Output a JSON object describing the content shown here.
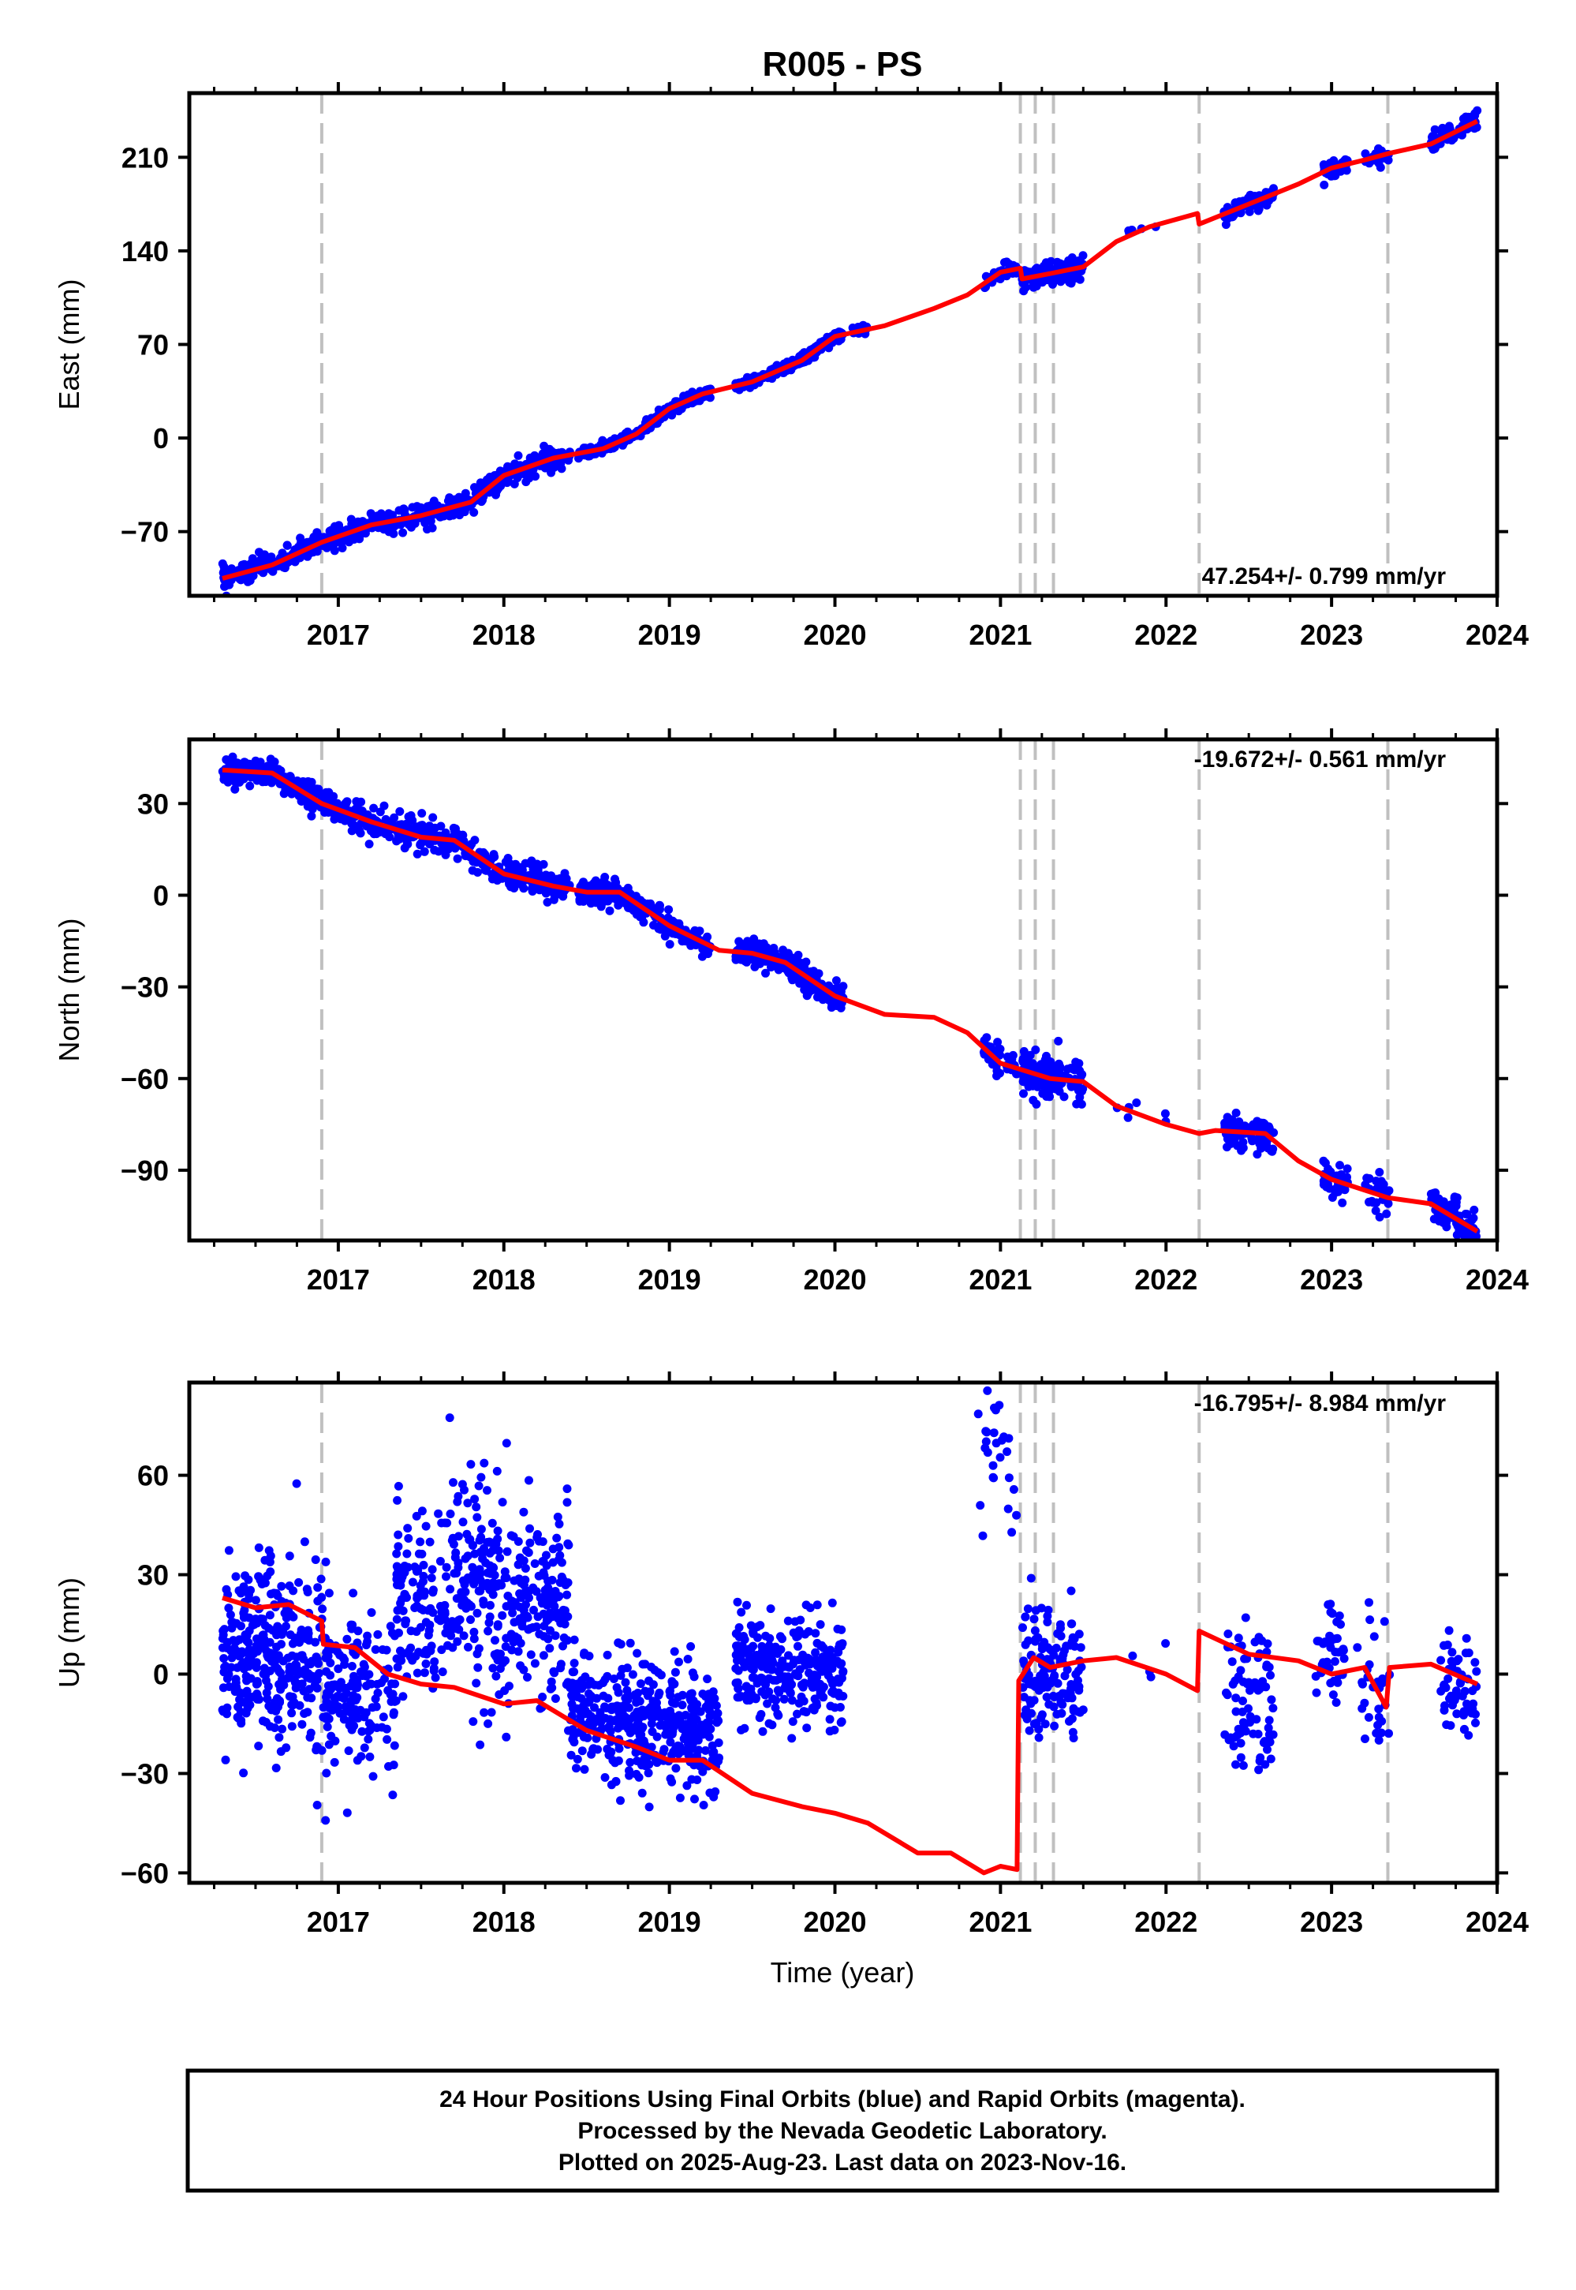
{
  "title": "R005 - PS",
  "xlabel": "Time (year)",
  "footer": {
    "lines": [
      "24 Hour Positions Using Final Orbits (blue) and Rapid Orbits (magenta).",
      "Processed by the Nevada Geodetic Laboratory.",
      "Plotted on 2025-Aug-23. Last data on 2023-Nov-16."
    ]
  },
  "colors": {
    "final_orbits": "#0000ff",
    "model_fit": "#ff0000",
    "event_lines": "#c0c0c0",
    "frame": "#000000"
  },
  "chart_data": [
    {
      "type": "scatter",
      "name": "east",
      "ylabel": "East (mm)",
      "rate_label": "47.254+/- 0.799 mm/yr",
      "xlim": [
        2016.1,
        2024.0
      ],
      "ylim": [
        -118,
        258
      ],
      "xticks": [
        2017,
        2018,
        2019,
        2020,
        2021,
        2022,
        2023,
        2024
      ],
      "yticks": [
        -70,
        0,
        70,
        140,
        210
      ],
      "ytick_labels": [
        "−70",
        "0",
        "70",
        "140",
        "210"
      ],
      "grid": false,
      "events": [
        2016.9,
        2021.12,
        2021.21,
        2021.32,
        2022.2,
        2023.34
      ],
      "data_segments": [
        {
          "start": 2016.3,
          "end": 2018.4,
          "density": 600,
          "noise": 4
        },
        {
          "start": 2018.45,
          "end": 2019.25,
          "density": 300,
          "noise": 2
        },
        {
          "start": 2019.4,
          "end": 2020.05,
          "density": 260,
          "noise": 2
        },
        {
          "start": 2020.1,
          "end": 2020.2,
          "density": 20,
          "noise": 2
        },
        {
          "start": 2020.9,
          "end": 2021.1,
          "density": 40,
          "noise": 3
        },
        {
          "start": 2021.13,
          "end": 2021.5,
          "density": 140,
          "noise": 4
        },
        {
          "start": 2021.7,
          "end": 2022.0,
          "density": 6,
          "noise": 2
        },
        {
          "start": 2022.35,
          "end": 2022.65,
          "density": 80,
          "noise": 3
        },
        {
          "start": 2022.95,
          "end": 2023.1,
          "density": 40,
          "noise": 3
        },
        {
          "start": 2023.2,
          "end": 2023.35,
          "density": 25,
          "noise": 3
        },
        {
          "start": 2023.6,
          "end": 2023.88,
          "density": 70,
          "noise": 4
        }
      ],
      "fit": [
        [
          2016.3,
          -105
        ],
        [
          2016.6,
          -95
        ],
        [
          2016.9,
          -78
        ],
        [
          2017.2,
          -65
        ],
        [
          2017.5,
          -58
        ],
        [
          2017.8,
          -48
        ],
        [
          2018.0,
          -28
        ],
        [
          2018.3,
          -15
        ],
        [
          2018.6,
          -8
        ],
        [
          2018.8,
          3
        ],
        [
          2019.0,
          22
        ],
        [
          2019.2,
          33
        ],
        [
          2019.5,
          42
        ],
        [
          2019.8,
          58
        ],
        [
          2020.0,
          76
        ],
        [
          2020.3,
          84
        ],
        [
          2020.6,
          97
        ],
        [
          2020.8,
          107
        ],
        [
          2021.0,
          124
        ],
        [
          2021.12,
          127
        ],
        [
          2021.13,
          119
        ],
        [
          2021.3,
          123
        ],
        [
          2021.5,
          128
        ],
        [
          2021.7,
          147
        ],
        [
          2021.9,
          158
        ],
        [
          2022.19,
          168
        ],
        [
          2022.2,
          160
        ],
        [
          2022.5,
          175
        ],
        [
          2022.8,
          190
        ],
        [
          2023.0,
          202
        ],
        [
          2023.2,
          208
        ],
        [
          2023.35,
          213
        ],
        [
          2023.6,
          220
        ],
        [
          2023.88,
          237
        ]
      ]
    },
    {
      "type": "scatter",
      "name": "north",
      "ylabel": "North (mm)",
      "rate_label": "-19.672+/- 0.561 mm/yr",
      "xlim": [
        2016.1,
        2024.0
      ],
      "ylim": [
        -113,
        51
      ],
      "xticks": [
        2017,
        2018,
        2019,
        2020,
        2021,
        2022,
        2023,
        2024
      ],
      "yticks": [
        -90,
        -60,
        -30,
        0,
        30
      ],
      "ytick_labels": [
        "−90",
        "−60",
        "−30",
        "0",
        "30"
      ],
      "grid": false,
      "events": [
        2016.9,
        2021.12,
        2021.21,
        2021.32,
        2022.2,
        2023.34
      ],
      "data_segments": [
        {
          "start": 2016.3,
          "end": 2018.4,
          "density": 600,
          "noise": 2.5
        },
        {
          "start": 2018.45,
          "end": 2019.25,
          "density": 300,
          "noise": 1.8
        },
        {
          "start": 2019.4,
          "end": 2020.05,
          "density": 260,
          "noise": 2
        },
        {
          "start": 2020.9,
          "end": 2021.1,
          "density": 40,
          "noise": 3
        },
        {
          "start": 2021.13,
          "end": 2021.5,
          "density": 140,
          "noise": 3.5
        },
        {
          "start": 2021.7,
          "end": 2022.0,
          "density": 6,
          "noise": 2
        },
        {
          "start": 2022.35,
          "end": 2022.65,
          "density": 80,
          "noise": 3
        },
        {
          "start": 2022.95,
          "end": 2023.1,
          "density": 40,
          "noise": 3
        },
        {
          "start": 2023.2,
          "end": 2023.35,
          "density": 25,
          "noise": 3
        },
        {
          "start": 2023.6,
          "end": 2023.88,
          "density": 70,
          "noise": 3
        }
      ],
      "fit": [
        [
          2016.3,
          41
        ],
        [
          2016.6,
          40
        ],
        [
          2016.9,
          30
        ],
        [
          2017.2,
          24
        ],
        [
          2017.5,
          19
        ],
        [
          2017.7,
          18
        ],
        [
          2018.0,
          7
        ],
        [
          2018.3,
          3
        ],
        [
          2018.5,
          1
        ],
        [
          2018.7,
          1
        ],
        [
          2019.0,
          -10
        ],
        [
          2019.3,
          -18
        ],
        [
          2019.5,
          -19
        ],
        [
          2019.7,
          -22
        ],
        [
          2020.0,
          -33
        ],
        [
          2020.3,
          -39
        ],
        [
          2020.6,
          -40
        ],
        [
          2020.8,
          -45
        ],
        [
          2021.0,
          -55
        ],
        [
          2021.3,
          -60
        ],
        [
          2021.5,
          -61
        ],
        [
          2021.7,
          -69
        ],
        [
          2022.0,
          -75
        ],
        [
          2022.2,
          -78
        ],
        [
          2022.3,
          -77
        ],
        [
          2022.6,
          -78
        ],
        [
          2022.8,
          -87
        ],
        [
          2023.0,
          -93
        ],
        [
          2023.34,
          -99
        ],
        [
          2023.6,
          -101
        ],
        [
          2023.88,
          -110
        ]
      ]
    },
    {
      "type": "scatter",
      "name": "up",
      "ylabel": "Up (mm)",
      "rate_label": "-16.795+/- 8.984 mm/yr",
      "xlim": [
        2016.1,
        2024.0
      ],
      "ylim": [
        -63,
        88
      ],
      "xticks": [
        2017,
        2018,
        2019,
        2020,
        2021,
        2022,
        2023,
        2024
      ],
      "yticks": [
        -60,
        -30,
        0,
        30,
        60
      ],
      "ytick_labels": [
        "−60",
        "−30",
        "0",
        "30",
        "60"
      ],
      "grid": false,
      "events": [
        2016.9,
        2021.12,
        2021.21,
        2021.32,
        2022.2,
        2023.34
      ],
      "data_segments": [
        {
          "start": 2016.3,
          "end": 2017.0,
          "density": 380,
          "noise": 14,
          "offset": 5
        },
        {
          "start": 2017.0,
          "end": 2017.35,
          "density": 120,
          "noise": 12,
          "offset": -6
        },
        {
          "start": 2017.35,
          "end": 2018.4,
          "density": 450,
          "noise": 16,
          "offset": 23
        },
        {
          "start": 2018.4,
          "end": 2019.3,
          "density": 420,
          "noise": 9,
          "offset": -15
        },
        {
          "start": 2019.4,
          "end": 2020.05,
          "density": 280,
          "noise": 8,
          "offset": 1
        },
        {
          "start": 2020.85,
          "end": 2021.1,
          "density": 30,
          "noise": 12,
          "offset": 70
        },
        {
          "start": 2021.13,
          "end": 2021.5,
          "density": 140,
          "noise": 10,
          "offset": 0
        },
        {
          "start": 2021.7,
          "end": 2022.0,
          "density": 4,
          "noise": 4,
          "offset": 6
        },
        {
          "start": 2022.35,
          "end": 2022.65,
          "density": 80,
          "noise": 12,
          "offset": -10
        },
        {
          "start": 2022.9,
          "end": 2023.08,
          "density": 40,
          "noise": 8,
          "offset": 6
        },
        {
          "start": 2023.15,
          "end": 2023.35,
          "density": 30,
          "noise": 10,
          "offset": -2
        },
        {
          "start": 2023.65,
          "end": 2023.88,
          "density": 55,
          "noise": 8,
          "offset": -3
        }
      ],
      "fit": [
        [
          2016.3,
          23
        ],
        [
          2016.5,
          20
        ],
        [
          2016.7,
          21
        ],
        [
          2016.9,
          16
        ],
        [
          2016.91,
          9
        ],
        [
          2017.1,
          8
        ],
        [
          2017.3,
          0
        ],
        [
          2017.5,
          -3
        ],
        [
          2017.7,
          -4
        ],
        [
          2018.0,
          -9
        ],
        [
          2018.2,
          -8
        ],
        [
          2018.5,
          -17
        ],
        [
          2018.8,
          -22
        ],
        [
          2019.0,
          -26
        ],
        [
          2019.2,
          -26
        ],
        [
          2019.5,
          -36
        ],
        [
          2019.8,
          -40
        ],
        [
          2020.0,
          -42
        ],
        [
          2020.2,
          -45
        ],
        [
          2020.5,
          -54
        ],
        [
          2020.7,
          -54
        ],
        [
          2020.9,
          -60
        ],
        [
          2021.0,
          -58
        ],
        [
          2021.1,
          -59
        ],
        [
          2021.11,
          -2
        ],
        [
          2021.2,
          5
        ],
        [
          2021.3,
          2
        ],
        [
          2021.5,
          4
        ],
        [
          2021.7,
          5
        ],
        [
          2022.0,
          0
        ],
        [
          2022.19,
          -5
        ],
        [
          2022.2,
          13
        ],
        [
          2022.5,
          6
        ],
        [
          2022.8,
          4
        ],
        [
          2023.0,
          0
        ],
        [
          2023.2,
          2
        ],
        [
          2023.33,
          -10
        ],
        [
          2023.35,
          2
        ],
        [
          2023.6,
          3
        ],
        [
          2023.88,
          -3
        ]
      ]
    }
  ]
}
